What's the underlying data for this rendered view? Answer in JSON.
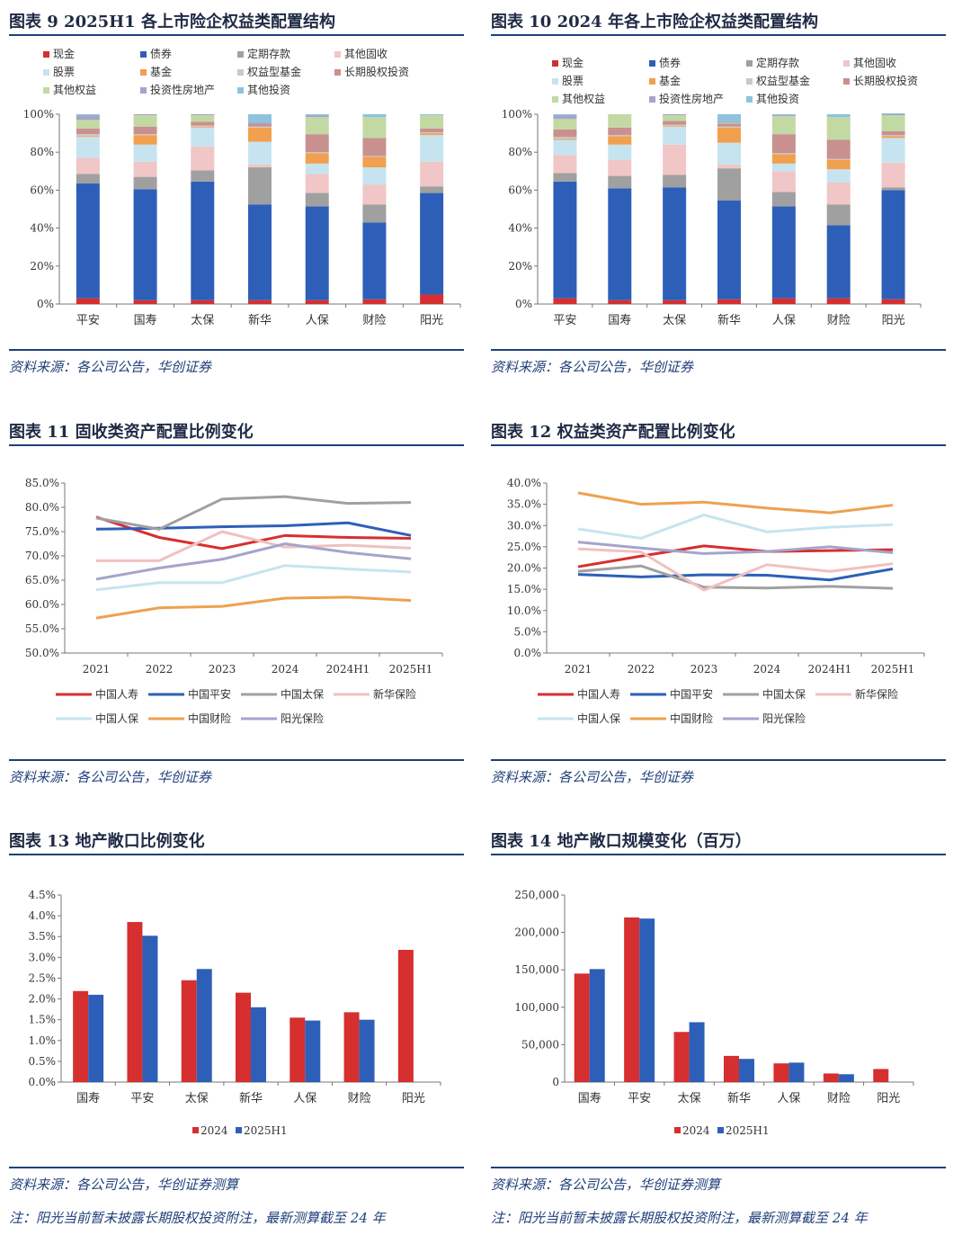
{
  "figures": [
    {
      "id": "fig9",
      "title": "图表 9   2025H1 各上市险企权益类配置结构",
      "source": "资料来源：各公司公告，华创证券",
      "chart_data": {
        "type": "bar",
        "stacked": true,
        "categories": [
          "平安",
          "国寿",
          "太保",
          "新华",
          "人保",
          "财险",
          "阳光"
        ],
        "yticks": [
          "0%",
          "20%",
          "40%",
          "60%",
          "80%",
          "100%"
        ],
        "ylim": [
          0,
          100
        ],
        "legend_columns": 4,
        "series": [
          {
            "name": "现金",
            "color": "#d62f2f",
            "values": [
              3,
              2,
              2,
              2,
              2,
              2.5,
              5
            ]
          },
          {
            "name": "债券",
            "color": "#2e5fb8",
            "values": [
              60.5,
              58.5,
              62.5,
              50.5,
              49.5,
              40.5,
              53.5
            ]
          },
          {
            "name": "定期存款",
            "color": "#a0a0a0",
            "values": [
              5,
              6.5,
              6,
              19.5,
              7,
              9.5,
              3.5
            ]
          },
          {
            "name": "其他固收",
            "color": "#f1c6c6",
            "values": [
              8.5,
              8,
              12.5,
              1.5,
              10,
              10.5,
              13
            ]
          },
          {
            "name": "股票",
            "color": "#c6e4f0",
            "values": [
              11,
              9,
              10,
              12,
              5.5,
              9,
              14
            ]
          },
          {
            "name": "基金",
            "color": "#f0a04e",
            "values": [
              0.5,
              5,
              0.5,
              7.5,
              5.5,
              5.5,
              1
            ]
          },
          {
            "name": "权益型基金",
            "color": "#c9c9c9",
            "values": [
              1,
              0.5,
              0.5,
              0.5,
              0.5,
              0.5,
              0.5
            ]
          },
          {
            "name": "长期股权投资",
            "color": "#c99090",
            "values": [
              3,
              4,
              2,
              1.5,
              9.5,
              9.5,
              2
            ]
          },
          {
            "name": "其他权益",
            "color": "#c3d9a3",
            "values": [
              4.5,
              6,
              3.5,
              0,
              9,
              11,
              7
            ]
          },
          {
            "name": "投资性房地产",
            "color": "#a4a4cc",
            "values": [
              2.5,
              0.5,
              0.5,
              0.5,
              1,
              0,
              0
            ]
          },
          {
            "name": "其他投资",
            "color": "#8fc3dd",
            "values": [
              0.5,
              0,
              0,
              4.5,
              0.5,
              1.5,
              0.5
            ]
          }
        ]
      }
    },
    {
      "id": "fig10",
      "title": "图表 10   2024 年各上市险企权益类配置结构",
      "source": "资料来源：各公司公告，华创证券",
      "chart_data": {
        "type": "bar",
        "stacked": true,
        "categories": [
          "平安",
          "国寿",
          "太保",
          "新华",
          "人保",
          "财险",
          "阳光"
        ],
        "yticks": [
          "0%",
          "20%",
          "40%",
          "60%",
          "80%",
          "100%"
        ],
        "ylim": [
          0,
          100
        ],
        "legend_columns": 4,
        "series": [
          {
            "name": "现金",
            "color": "#d62f2f",
            "values": [
              3,
              2,
              2,
              2.5,
              3,
              3,
              2.5
            ]
          },
          {
            "name": "债券",
            "color": "#2e5fb8",
            "values": [
              61.5,
              59,
              59.5,
              52,
              48.5,
              38.5,
              57.5
            ]
          },
          {
            "name": "定期存款",
            "color": "#a0a0a0",
            "values": [
              4.5,
              6.5,
              6.5,
              17,
              7.5,
              11,
              1.5
            ]
          },
          {
            "name": "其他固收",
            "color": "#f1c6c6",
            "values": [
              9.5,
              8.5,
              16,
              2,
              11,
              11.5,
              13
            ]
          },
          {
            "name": "股票",
            "color": "#c6e4f0",
            "values": [
              8,
              8,
              9.5,
              11.5,
              4,
              7,
              13
            ]
          },
          {
            "name": "基金",
            "color": "#f0a04e",
            "values": [
              0.5,
              4.5,
              0.5,
              8,
              5,
              5,
              1
            ]
          },
          {
            "name": "权益型基金",
            "color": "#c9c9c9",
            "values": [
              1,
              0.5,
              0.5,
              0.5,
              0.5,
              0.5,
              0.5
            ]
          },
          {
            "name": "长期股权投资",
            "color": "#c99090",
            "values": [
              4,
              4,
              2,
              1.5,
              10,
              10,
              2
            ]
          },
          {
            "name": "其他权益",
            "color": "#c3d9a3",
            "values": [
              5.5,
              7,
              3,
              0.5,
              9.5,
              12,
              8.5
            ]
          },
          {
            "name": "投资性房地产",
            "color": "#a4a4cc",
            "values": [
              2,
              0,
              0.5,
              0.5,
              0.5,
              0,
              0.5
            ]
          },
          {
            "name": "其他投资",
            "color": "#8fc3dd",
            "values": [
              0.5,
              0,
              0,
              4,
              0.5,
              1.5,
              0.5
            ]
          }
        ]
      }
    },
    {
      "id": "fig11",
      "title": "图表 11   固收类资产配置比例变化",
      "source": "资料来源：各公司公告，华创证券",
      "chart_data": {
        "type": "line",
        "categories": [
          "2021",
          "2022",
          "2023",
          "2024",
          "2024H1",
          "2025H1"
        ],
        "yticks": [
          "50.0%",
          "55.0%",
          "60.0%",
          "65.0%",
          "70.0%",
          "75.0%",
          "80.0%",
          "85.0%"
        ],
        "ylim": [
          50,
          85
        ],
        "series": [
          {
            "name": "中国人寿",
            "color": "#d62f2f",
            "values": [
              78,
              73.8,
              71.5,
              74.2,
              73.8,
              73.6
            ]
          },
          {
            "name": "中国平安",
            "color": "#2e5fb8",
            "values": [
              75.5,
              75.7,
              76,
              76.2,
              76.8,
              74.2
            ]
          },
          {
            "name": "中国太保",
            "color": "#a0a0a0",
            "values": [
              77.8,
              75.5,
              81.7,
              82.2,
              80.8,
              81
            ]
          },
          {
            "name": "新华保险",
            "color": "#f1c0c0",
            "values": [
              69,
              69,
              75,
              71.8,
              72.2,
              71.6
            ]
          },
          {
            "name": "中国人保",
            "color": "#c6e4f0",
            "values": [
              63,
              64.5,
              64.5,
              68,
              67.3,
              66.7
            ]
          },
          {
            "name": "中国财险",
            "color": "#f0a04e",
            "values": [
              57.2,
              59.3,
              59.6,
              61.3,
              61.5,
              60.8
            ]
          },
          {
            "name": "阳光保险",
            "color": "#a4a4cc",
            "values": [
              65.2,
              67.5,
              69.3,
              72.5,
              70.7,
              69.4
            ]
          }
        ]
      }
    },
    {
      "id": "fig12",
      "title": "图表 12   权益类资产配置比例变化",
      "source": "资料来源：各公司公告，华创证券",
      "chart_data": {
        "type": "line",
        "categories": [
          "2021",
          "2022",
          "2023",
          "2024",
          "2024H1",
          "2025H1"
        ],
        "yticks": [
          "0.0%",
          "5.0%",
          "10.0%",
          "15.0%",
          "20.0%",
          "25.0%",
          "30.0%",
          "35.0%",
          "40.0%"
        ],
        "ylim": [
          0,
          40
        ],
        "series": [
          {
            "name": "中国人寿",
            "color": "#d62f2f",
            "values": [
              20.3,
              22.8,
              25.2,
              23.9,
              24.1,
              24.3
            ]
          },
          {
            "name": "中国平安",
            "color": "#2e5fb8",
            "values": [
              18.5,
              17.9,
              18.4,
              18.3,
              17.2,
              19.8
            ]
          },
          {
            "name": "中国太保",
            "color": "#a0a0a0",
            "values": [
              19.2,
              20.5,
              15.5,
              15.3,
              15.7,
              15.2
            ]
          },
          {
            "name": "新华保险",
            "color": "#f1c0c0",
            "values": [
              24.5,
              23.8,
              14.8,
              20.8,
              19.2,
              21
            ]
          },
          {
            "name": "中国人保",
            "color": "#c6e4f0",
            "values": [
              29.2,
              27,
              32.5,
              28.5,
              29.6,
              30.2
            ]
          },
          {
            "name": "中国财险",
            "color": "#f0a04e",
            "values": [
              37.7,
              35,
              35.5,
              34.1,
              33,
              34.8
            ]
          },
          {
            "name": "阳光保险",
            "color": "#a4a4cc",
            "values": [
              26.1,
              24.7,
              23.4,
              23.9,
              25,
              23.6
            ]
          }
        ]
      }
    },
    {
      "id": "fig13",
      "title": "图表 13   地产敞口比例变化",
      "source": "资料来源：各公司公告，华创证券测算",
      "note": "注：阳光当前暂未披露长期股权投资附注，最新测算截至 24 年",
      "chart_data": {
        "type": "bar",
        "categories": [
          "国寿",
          "平安",
          "太保",
          "新华",
          "人保",
          "财险",
          "阳光"
        ],
        "yticks": [
          "0.0%",
          "0.5%",
          "1.0%",
          "1.5%",
          "2.0%",
          "2.5%",
          "3.0%",
          "3.5%",
          "4.0%",
          "4.5%"
        ],
        "ylim": [
          0,
          4.5
        ],
        "series": [
          {
            "name": "2024",
            "color": "#d62f2f",
            "values": [
              2.19,
              3.85,
              2.45,
              2.15,
              1.55,
              1.68,
              3.18
            ]
          },
          {
            "name": "2025H1",
            "color": "#2e5fb8",
            "values": [
              2.1,
              3.52,
              2.72,
              1.8,
              1.48,
              1.5,
              null
            ]
          }
        ]
      }
    },
    {
      "id": "fig14",
      "title": "图表 14   地产敞口规模变化（百万）",
      "source": "资料来源：各公司公告，华创证券测算",
      "note": "注：阳光当前暂未披露长期股权投资附注，最新测算截至 24 年",
      "chart_data": {
        "type": "bar",
        "categories": [
          "国寿",
          "平安",
          "太保",
          "新华",
          "人保",
          "财险",
          "阳光"
        ],
        "yticks": [
          "0",
          "50,000",
          "100,000",
          "150,000",
          "200,000",
          "250,000"
        ],
        "ylim": [
          0,
          250000
        ],
        "series": [
          {
            "name": "2024",
            "color": "#d62f2f",
            "values": [
              145000,
              220000,
              67000,
              35000,
              25000,
              11500,
              17500
            ]
          },
          {
            "name": "2025H1",
            "color": "#2e5fb8",
            "values": [
              151000,
              218500,
              80000,
              31000,
              26000,
              10500,
              null
            ]
          }
        ]
      }
    }
  ]
}
